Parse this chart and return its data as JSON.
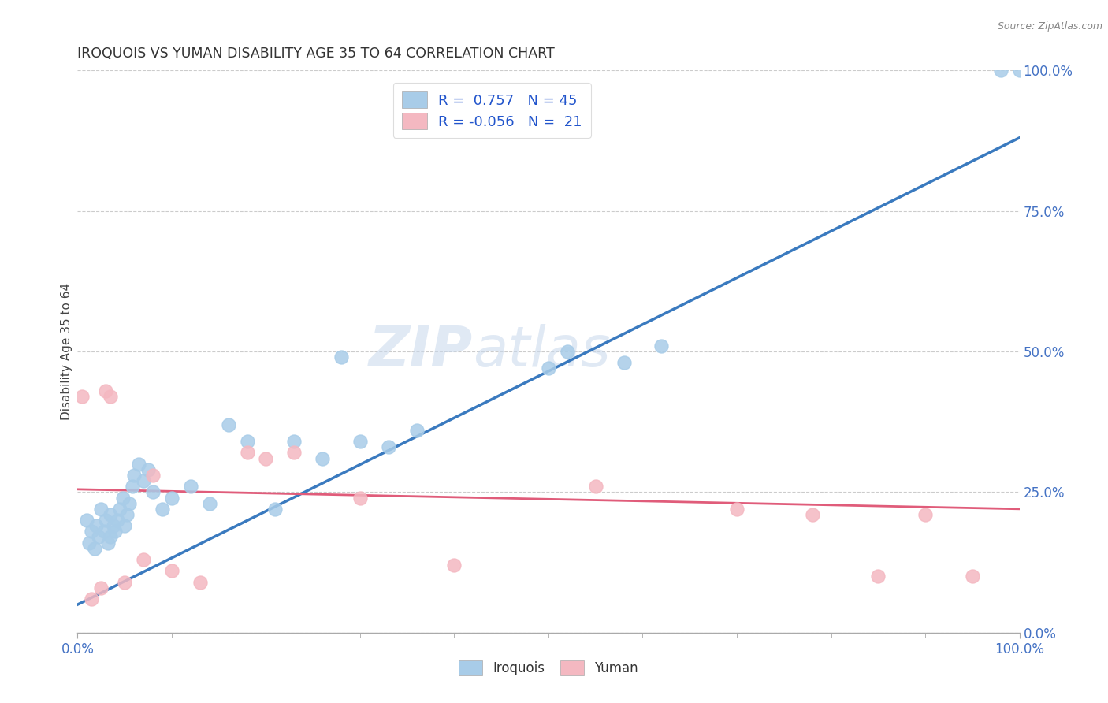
{
  "title": "IROQUOIS VS YUMAN DISABILITY AGE 35 TO 64 CORRELATION CHART",
  "source": "Source: ZipAtlas.com",
  "ylabel": "Disability Age 35 to 64",
  "xlim": [
    0,
    100
  ],
  "ylim": [
    0,
    100
  ],
  "xtick_vals": [
    0,
    100
  ],
  "xtick_labels": [
    "0.0%",
    "100.0%"
  ],
  "ytick_values": [
    0,
    25,
    50,
    75,
    100
  ],
  "ytick_labels": [
    "0.0%",
    "25.0%",
    "50.0%",
    "75.0%",
    "100.0%"
  ],
  "background_color": "#ffffff",
  "iroquois_color": "#a8cce8",
  "yuman_color": "#f4b8c1",
  "iroquois_line_color": "#3a7abf",
  "yuman_line_color": "#e05c7a",
  "R_iroquois": "0.757",
  "N_iroquois": "45",
  "R_yuman": "-0.056",
  "N_yuman": "21",
  "legend_text_color": "#2255cc",
  "axis_tick_color": "#4472c4",
  "iroquois_x": [
    1.0,
    1.2,
    1.5,
    1.8,
    2.0,
    2.2,
    2.5,
    2.8,
    3.0,
    3.2,
    3.5,
    3.5,
    3.8,
    4.0,
    4.2,
    4.5,
    4.8,
    5.0,
    5.2,
    5.5,
    5.8,
    6.0,
    6.5,
    7.0,
    7.5,
    8.0,
    9.0,
    10.0,
    12.0,
    14.0,
    16.0,
    18.0,
    21.0,
    23.0,
    26.0,
    28.0,
    30.0,
    33.0,
    36.0,
    50.0,
    52.0,
    58.0,
    62.0,
    98.0,
    100.0
  ],
  "iroquois_y": [
    20.0,
    16.0,
    18.0,
    15.0,
    19.0,
    17.0,
    22.0,
    18.0,
    20.0,
    16.0,
    21.0,
    17.0,
    19.0,
    18.0,
    20.0,
    22.0,
    24.0,
    19.0,
    21.0,
    23.0,
    26.0,
    28.0,
    30.0,
    27.0,
    29.0,
    25.0,
    22.0,
    24.0,
    26.0,
    23.0,
    37.0,
    34.0,
    22.0,
    34.0,
    31.0,
    49.0,
    34.0,
    33.0,
    36.0,
    47.0,
    50.0,
    48.0,
    51.0,
    100.0,
    100.0
  ],
  "yuman_x": [
    0.5,
    1.5,
    2.5,
    3.0,
    3.5,
    5.0,
    7.0,
    8.0,
    10.0,
    13.0,
    18.0,
    20.0,
    23.0,
    30.0,
    40.0,
    55.0,
    70.0,
    78.0,
    85.0,
    90.0,
    95.0
  ],
  "yuman_y": [
    42.0,
    6.0,
    8.0,
    43.0,
    42.0,
    9.0,
    13.0,
    28.0,
    11.0,
    9.0,
    32.0,
    31.0,
    32.0,
    24.0,
    12.0,
    26.0,
    22.0,
    21.0,
    10.0,
    21.0,
    10.0
  ],
  "iroquois_trendline": [
    5.0,
    88.0
  ],
  "yuman_trendline": [
    25.5,
    22.0
  ],
  "minor_xticks": [
    10,
    20,
    30,
    40,
    50,
    60,
    70,
    80,
    90
  ]
}
